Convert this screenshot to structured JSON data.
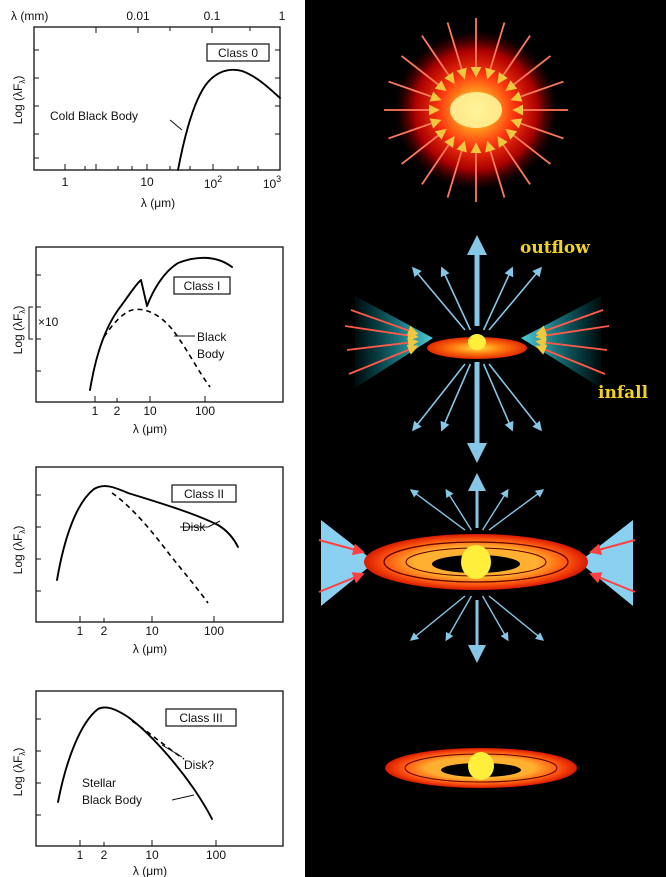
{
  "panels": [
    {
      "class_label": "Class 0",
      "y_label": "Log (λF",
      "y_label_sub": "λ",
      "y_label_end": ")",
      "x_label": "λ (μm)",
      "top_label": "λ (mm)",
      "top_ticks": [
        "0.01",
        "0.1",
        "1"
      ],
      "bottom_ticks": [
        "1",
        "10",
        "10",
        "10"
      ],
      "bottom_tick_sups": [
        "",
        "",
        "2",
        "3"
      ],
      "annotations": [
        "Cold Black Body"
      ]
    },
    {
      "class_label": "Class I",
      "y_label": "Log (λF",
      "y_label_sub": "λ",
      "y_label_end": ")",
      "x_label": "λ (μm)",
      "bottom_ticks": [
        "1",
        "2",
        "10",
        "100"
      ],
      "annotations": [
        "×10",
        "Black",
        "Body"
      ]
    },
    {
      "class_label": "Class II",
      "y_label": "Log (λF",
      "y_label_sub": "λ",
      "y_label_end": ")",
      "x_label": "λ (μm)",
      "bottom_ticks": [
        "1",
        "2",
        "10",
        "100"
      ],
      "annotations": [
        "Disk"
      ]
    },
    {
      "class_label": "Class III",
      "y_label": "Log (λF",
      "y_label_sub": "λ",
      "y_label_end": ")",
      "x_label": "λ (μm)",
      "bottom_ticks": [
        "1",
        "2",
        "10",
        "100"
      ],
      "annotations": [
        "Disk?",
        "Stellar",
        "Black Body"
      ]
    }
  ],
  "illustration": {
    "labels": {
      "outflow": "outflow",
      "infall": "infall"
    },
    "colors": {
      "background": "#000000",
      "infall_arrow": "#ff5a4a",
      "infall_arrow_inner": "#f0c840",
      "outflow_arrow": "#86c6e6",
      "label_text": "#f2d21c",
      "star": "#ffef3a"
    }
  }
}
